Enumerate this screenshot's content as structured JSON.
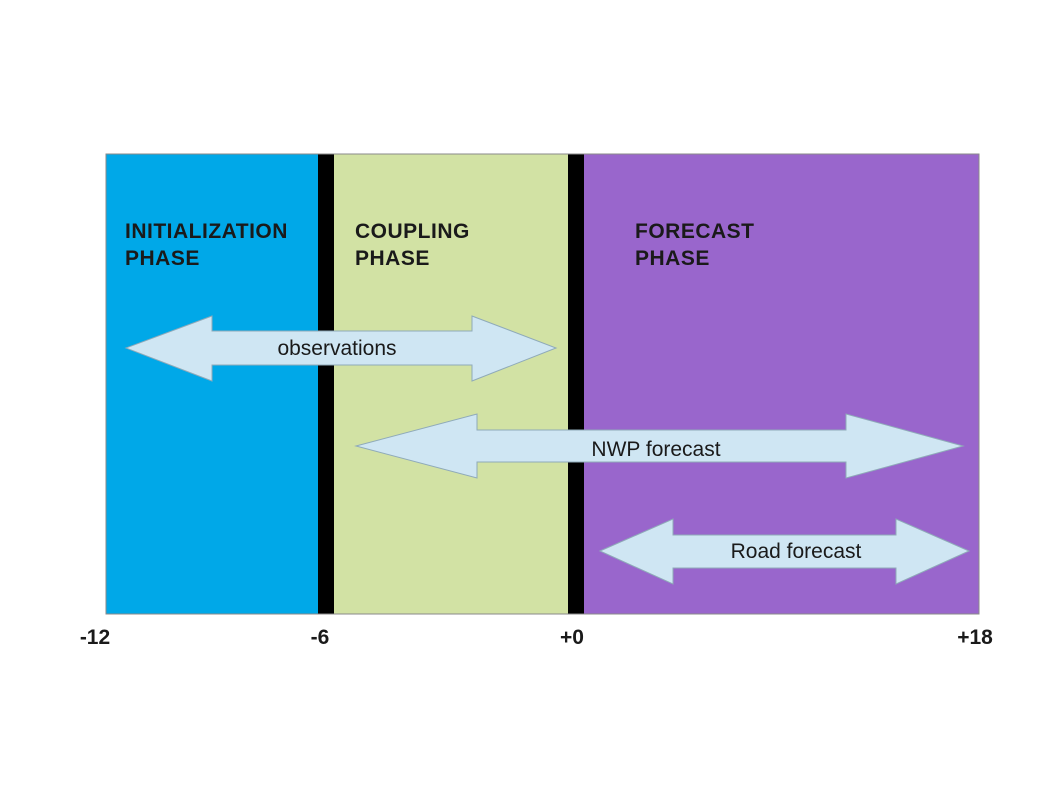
{
  "colors": {
    "initialization": "#00a8e8",
    "coupling": "#d2e2a4",
    "forecast": "#9966cc",
    "divider": "#000000",
    "arrow_fill": "#cfe6f3",
    "arrow_stroke": "#8faab9",
    "label_text": "#1a1a1a"
  },
  "phases": [
    {
      "line1": "INITIALIZATION",
      "line2": "PHASE"
    },
    {
      "line1": "COUPLING",
      "line2": "PHASE"
    },
    {
      "line1": "FORECAST",
      "line2": "PHASE"
    }
  ],
  "arrows": [
    {
      "label": "observations",
      "from": -12,
      "to": 0
    },
    {
      "label": "NWP forecast",
      "from": -6,
      "to": 18
    },
    {
      "label": "Road forecast",
      "from": 0,
      "to": 18
    }
  ],
  "timeline": {
    "ticks": [
      "-12",
      "-6",
      "+0",
      "+18"
    ]
  }
}
